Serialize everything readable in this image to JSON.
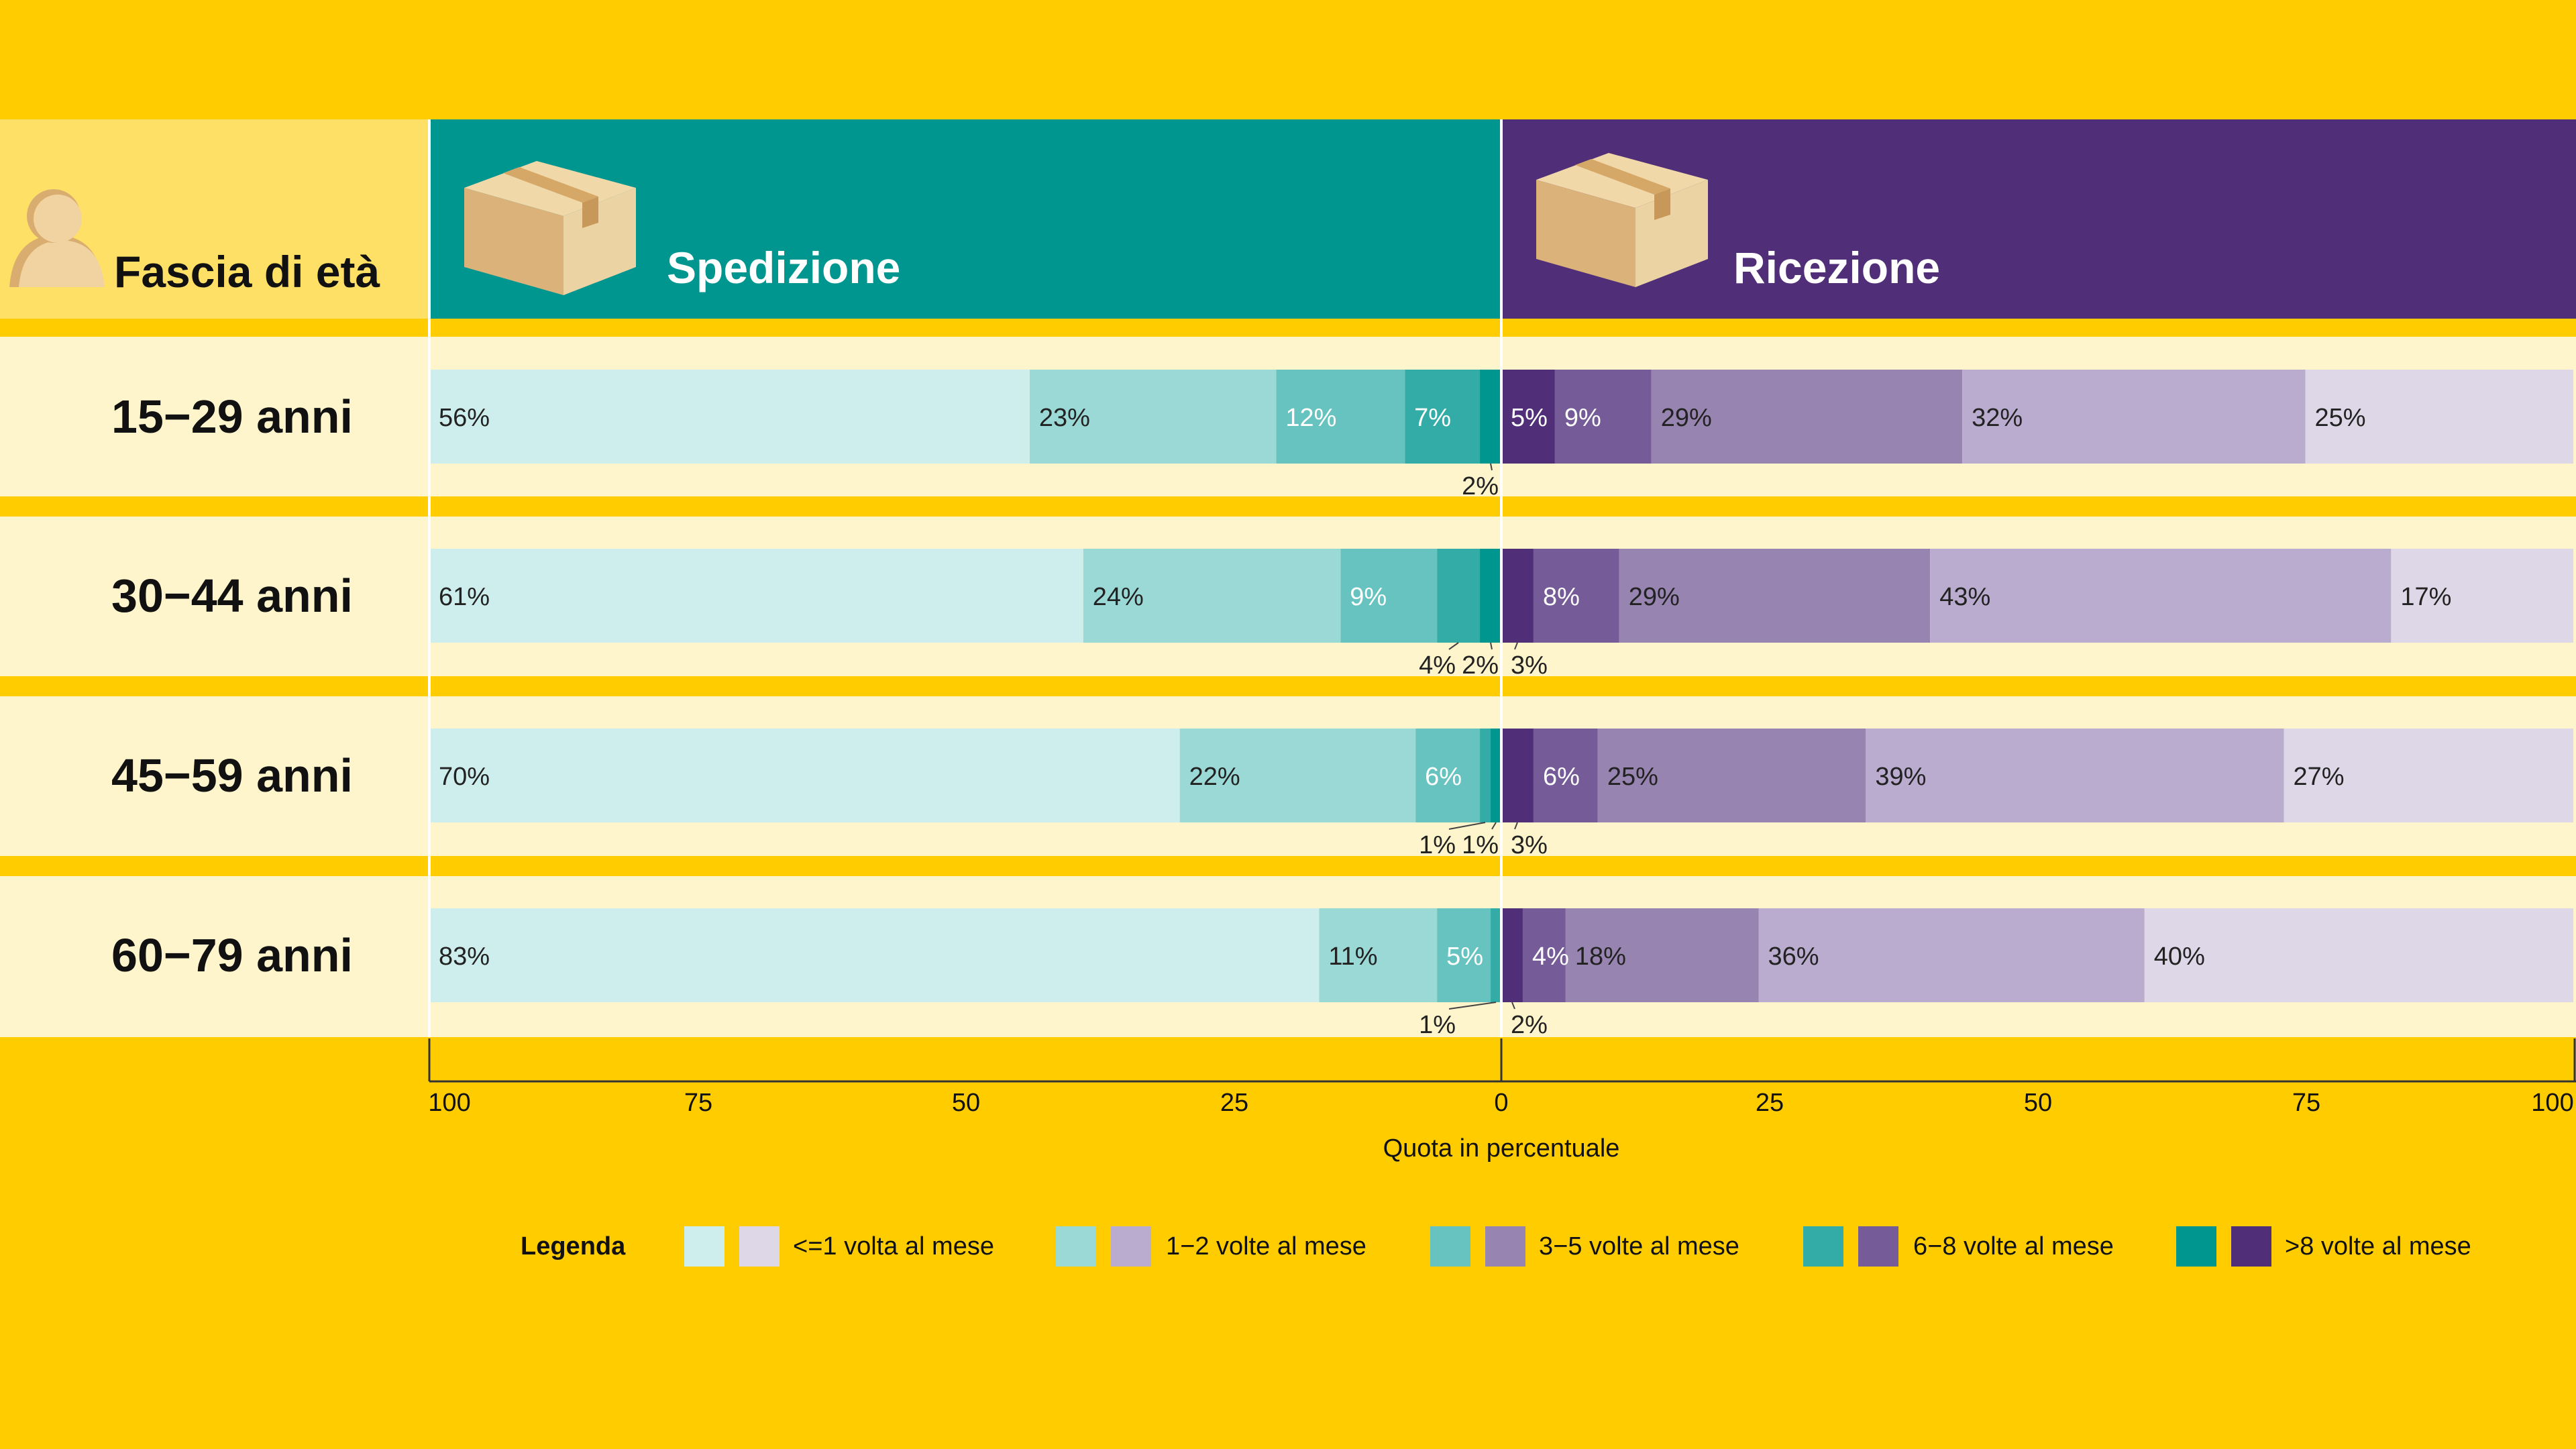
{
  "header": {
    "age_column": "Fascia di età",
    "left_title": "Spedizione",
    "right_title": "Ricezione",
    "icons": [
      "person-icon",
      "box-icon"
    ]
  },
  "colors": {
    "background": "#ffcc00",
    "age_header_bg": "#ffe066",
    "row_bg": "#fff5cc",
    "left_header": "#009690",
    "right_header": "#502f78",
    "left_scale": [
      "#cdeeed",
      "#9ad9d6",
      "#66c3bf",
      "#33aca7",
      "#009690"
    ],
    "right_scale": [
      "#ddd7e7",
      "#baacce",
      "#9784b0",
      "#755b98",
      "#502f78"
    ]
  },
  "chart_data": {
    "type": "bar",
    "orientation": "horizontal-diverging",
    "categories": [
      "15−29 anni",
      "30−44 anni",
      "45−59 anni",
      "60−79 anni"
    ],
    "left_group": "Spedizione",
    "right_group": "Ricezione",
    "series_names": [
      "<=1 volta al mese",
      "1−2 volte al mese",
      "3−5 volte al mese",
      "6−8 volte al mese",
      ">8 volte al mese"
    ],
    "spedizione": [
      {
        "values": [
          56,
          23,
          12,
          7,
          2
        ],
        "labels": [
          "56%",
          "23%",
          "12%",
          "7%",
          "2%"
        ]
      },
      {
        "values": [
          61,
          24,
          9,
          4,
          2
        ],
        "labels": [
          "61%",
          "24%",
          "9%",
          "4%",
          "2%"
        ]
      },
      {
        "values": [
          70,
          22,
          6,
          1,
          1
        ],
        "labels": [
          "70%",
          "22%",
          "6%",
          "1%",
          "1%"
        ]
      },
      {
        "values": [
          83,
          11,
          5,
          1,
          0
        ],
        "labels": [
          "83%",
          "11%",
          "5%",
          "1%",
          ""
        ]
      }
    ],
    "ricezione": [
      {
        "values": [
          25,
          32,
          29,
          9,
          5
        ],
        "labels": [
          "25%",
          "32%",
          "29%",
          "9%",
          "5%"
        ]
      },
      {
        "values": [
          17,
          43,
          29,
          8,
          3
        ],
        "labels": [
          "17%",
          "43%",
          "29%",
          "8%",
          "3%"
        ]
      },
      {
        "values": [
          27,
          39,
          25,
          6,
          3
        ],
        "labels": [
          "27%",
          "39%",
          "25%",
          "6%",
          "3%"
        ]
      },
      {
        "values": [
          40,
          36,
          18,
          4,
          2
        ],
        "labels": [
          "40%",
          "36%",
          "18%",
          "4%",
          "2%"
        ]
      }
    ],
    "xlabel": "Quota in percentuale",
    "xlim": [
      0,
      100
    ],
    "x_ticks_left": [
      "100",
      "75",
      "50",
      "25",
      "0"
    ],
    "x_ticks_right": [
      "25",
      "50",
      "75",
      "100"
    ],
    "legend_title": "Legenda",
    "legend_placement": "bottom"
  }
}
